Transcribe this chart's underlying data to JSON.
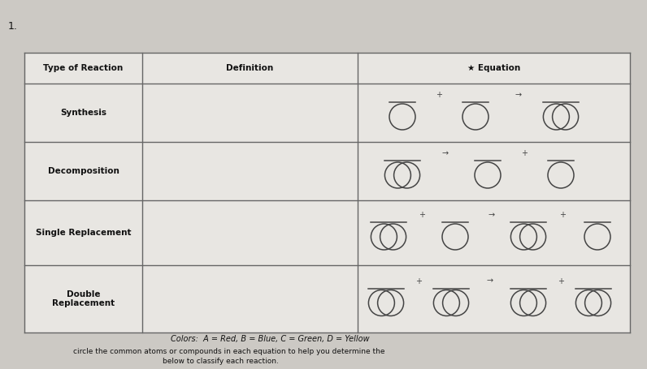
{
  "title_number": "1.",
  "col_headers": [
    "Type of Reaction",
    "Definition",
    "★ Equation"
  ],
  "row_labels": [
    "Synthesis",
    "Decomposition",
    "Single Replacement",
    "Double\nReplacement"
  ],
  "footer_colors": "Colors:  A = Red, B = Blue, C = Green, D = Yellow",
  "footer_line2": "circle the common atoms or compounds in each equation to help you determine the",
  "footer_line3": "below to classify each reaction.",
  "bg_color": "#ccc9c4",
  "table_bg": "#e8e6e2",
  "header_bg": "#d8d5d1",
  "line_color": "#666666",
  "circle_color": "#444444",
  "text_color": "#111111"
}
